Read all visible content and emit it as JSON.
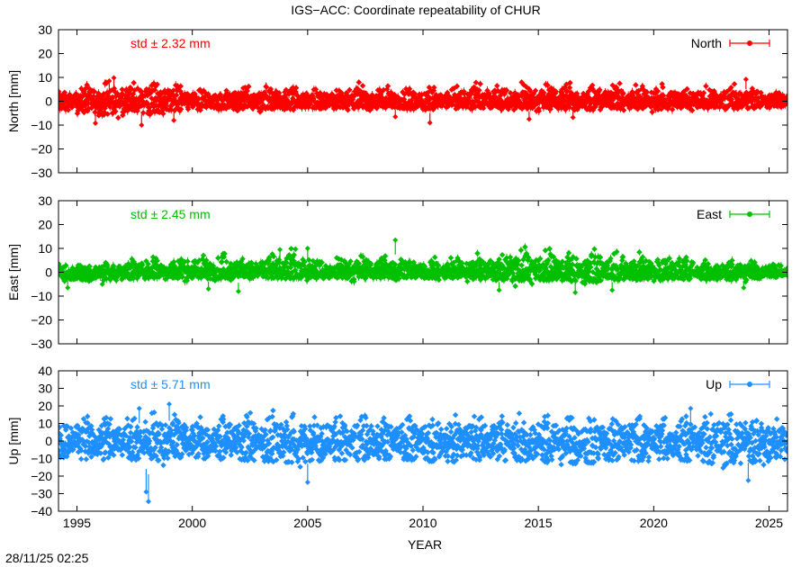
{
  "title": "IGS−ACC: Coordinate repeatability of CHUR",
  "timestamp": "28/11/25 02:25",
  "chart_data": {
    "type": "scatter",
    "xlabel": "YEAR",
    "xlim": [
      1994.2,
      2025.8
    ],
    "xticks": [
      1995,
      2000,
      2005,
      2010,
      2015,
      2020,
      2025
    ],
    "xtick_labels": [
      "1995",
      "2000",
      "2005",
      "2010",
      "2015",
      "2020",
      "2025"
    ],
    "grid": false,
    "legend_position": "top-right",
    "panels": [
      {
        "name": "north",
        "ylabel": "North [mm]",
        "ylim": [
          -30,
          30
        ],
        "yticks": [
          30,
          20,
          10,
          0,
          -10,
          -20,
          -30
        ],
        "ytick_labels": [
          "30",
          "20",
          "10",
          "0",
          "−10",
          "−20",
          "−30"
        ],
        "std_label": "std ± 2.32 mm",
        "std_mm": 2.32,
        "legend": "North",
        "color": "#ff0000",
        "envelope": [
          [
            1994.2,
            -5.5,
            4.5
          ],
          [
            1995.0,
            -6.5,
            6.0
          ],
          [
            1996.0,
            -9.5,
            8.0
          ],
          [
            1997.0,
            -7.0,
            9.5
          ],
          [
            1998.0,
            -10.0,
            8.0
          ],
          [
            1999.0,
            -7.0,
            7.0
          ],
          [
            2000.0,
            -6.0,
            6.0
          ],
          [
            2001.0,
            -5.5,
            5.5
          ],
          [
            2002.0,
            -5.0,
            6.5
          ],
          [
            2003.0,
            -5.0,
            7.0
          ],
          [
            2004.0,
            -6.0,
            8.5
          ],
          [
            2005.0,
            -5.0,
            6.0
          ],
          [
            2006.0,
            -5.0,
            6.0
          ],
          [
            2007.0,
            -5.0,
            10.0
          ],
          [
            2008.0,
            -5.0,
            7.5
          ],
          [
            2009.0,
            -4.5,
            6.5
          ],
          [
            2010.0,
            -6.0,
            6.0
          ],
          [
            2011.0,
            -5.0,
            6.0
          ],
          [
            2012.0,
            -5.0,
            8.5
          ],
          [
            2013.0,
            -5.5,
            7.0
          ],
          [
            2014.0,
            -5.0,
            8.0
          ],
          [
            2015.0,
            -5.0,
            8.5
          ],
          [
            2016.0,
            -5.5,
            10.0
          ],
          [
            2017.0,
            -6.0,
            7.0
          ],
          [
            2018.0,
            -5.0,
            8.0
          ],
          [
            2019.0,
            -5.0,
            7.0
          ],
          [
            2020.0,
            -5.5,
            8.0
          ],
          [
            2021.0,
            -5.0,
            7.5
          ],
          [
            2022.0,
            -5.0,
            6.5
          ],
          [
            2023.0,
            -5.0,
            7.5
          ],
          [
            2024.0,
            -5.0,
            7.0
          ],
          [
            2025.0,
            -4.0,
            5.0
          ],
          [
            2025.8,
            -3.0,
            3.5
          ]
        ],
        "outliers": [
          [
            1995.8,
            -9.2
          ],
          [
            1996.4,
            8.5
          ],
          [
            1996.6,
            9.8
          ],
          [
            1997.8,
            -10.0
          ],
          [
            1999.2,
            -8.0
          ],
          [
            2002.2,
            5.5
          ],
          [
            2008.8,
            -6.5
          ],
          [
            2010.3,
            -9.0
          ],
          [
            2014.6,
            -7.5
          ],
          [
            2016.5,
            -6.8
          ],
          [
            2024.0,
            9.2
          ]
        ]
      },
      {
        "name": "east",
        "ylabel": "East [mm]",
        "ylim": [
          -30,
          30
        ],
        "yticks": [
          30,
          20,
          10,
          0,
          -10,
          -20,
          -30
        ],
        "ytick_labels": [
          "30",
          "20",
          "10",
          "0",
          "−10",
          "−20",
          "−30"
        ],
        "std_label": "std ± 2.45 mm",
        "std_mm": 2.45,
        "legend": "East",
        "color": "#00c000",
        "envelope": [
          [
            1994.2,
            -5.5,
            4.0
          ],
          [
            1995.0,
            -6.0,
            4.5
          ],
          [
            1996.0,
            -5.5,
            4.5
          ],
          [
            1997.0,
            -4.5,
            4.0
          ],
          [
            1998.0,
            -4.0,
            10.0
          ],
          [
            1999.0,
            -4.0,
            7.5
          ],
          [
            2000.0,
            -4.0,
            7.0
          ],
          [
            2001.0,
            -4.5,
            10.0
          ],
          [
            2002.0,
            -4.0,
            8.0
          ],
          [
            2003.0,
            -4.0,
            8.0
          ],
          [
            2004.0,
            -4.5,
            11.5
          ],
          [
            2005.0,
            -4.0,
            10.0
          ],
          [
            2006.0,
            -3.5,
            5.0
          ],
          [
            2007.0,
            -4.0,
            10.0
          ],
          [
            2008.0,
            -4.0,
            8.0
          ],
          [
            2009.0,
            -4.0,
            9.0
          ],
          [
            2010.0,
            -4.0,
            6.0
          ],
          [
            2011.0,
            -4.0,
            6.5
          ],
          [
            2012.0,
            -4.0,
            8.5
          ],
          [
            2013.0,
            -6.0,
            8.5
          ],
          [
            2014.0,
            -6.0,
            13.0
          ],
          [
            2015.0,
            -5.0,
            11.5
          ],
          [
            2016.0,
            -6.0,
            9.5
          ],
          [
            2017.0,
            -7.0,
            9.0
          ],
          [
            2018.0,
            -5.0,
            11.0
          ],
          [
            2019.0,
            -5.0,
            10.0
          ],
          [
            2020.0,
            -5.5,
            8.5
          ],
          [
            2021.0,
            -5.0,
            9.5
          ],
          [
            2022.0,
            -5.0,
            6.0
          ],
          [
            2023.0,
            -5.0,
            5.0
          ],
          [
            2024.0,
            -5.0,
            5.0
          ],
          [
            2025.0,
            -3.5,
            4.5
          ],
          [
            2025.8,
            -3.0,
            3.5
          ]
        ],
        "outliers": [
          [
            1994.6,
            -6.5
          ],
          [
            1996.1,
            -5.0
          ],
          [
            2000.7,
            -7.0
          ],
          [
            2002.0,
            -8.0
          ],
          [
            2003.8,
            9.5
          ],
          [
            2005.0,
            10.0
          ],
          [
            2008.8,
            13.5
          ],
          [
            2013.3,
            -7.5
          ],
          [
            2016.6,
            -8.5
          ],
          [
            2018.2,
            -7.5
          ],
          [
            2023.9,
            -6.5
          ]
        ]
      },
      {
        "name": "up",
        "ylabel": "Up [mm]",
        "ylim": [
          -40,
          40
        ],
        "yticks": [
          40,
          30,
          20,
          10,
          0,
          -10,
          -20,
          -30,
          -40
        ],
        "ytick_labels": [
          "40",
          "30",
          "20",
          "10",
          "0",
          "−10",
          "−20",
          "−30",
          "−40"
        ],
        "std_label": "std ± 5.71 mm",
        "std_mm": 5.71,
        "legend": "Up",
        "color": "#1e8fff",
        "envelope": [
          [
            1994.2,
            -14.0,
            13.0
          ],
          [
            1995.0,
            -17.0,
            14.0
          ],
          [
            1996.0,
            -18.0,
            14.0
          ],
          [
            1997.0,
            -15.0,
            12.0
          ],
          [
            1998.0,
            -19.0,
            17.0
          ],
          [
            1999.0,
            -17.0,
            16.0
          ],
          [
            2000.0,
            -16.0,
            15.0
          ],
          [
            2001.0,
            -16.0,
            14.0
          ],
          [
            2002.0,
            -17.0,
            15.0
          ],
          [
            2003.0,
            -18.0,
            17.0
          ],
          [
            2004.0,
            -20.0,
            18.0
          ],
          [
            2005.0,
            -19.0,
            14.0
          ],
          [
            2006.0,
            -17.0,
            14.0
          ],
          [
            2007.0,
            -18.0,
            15.0
          ],
          [
            2008.0,
            -16.0,
            14.0
          ],
          [
            2009.0,
            -16.0,
            14.0
          ],
          [
            2010.0,
            -18.0,
            16.0
          ],
          [
            2011.0,
            -20.0,
            16.0
          ],
          [
            2012.0,
            -17.0,
            15.0
          ],
          [
            2013.0,
            -17.0,
            14.0
          ],
          [
            2014.0,
            -18.0,
            16.0
          ],
          [
            2015.0,
            -18.0,
            15.0
          ],
          [
            2016.0,
            -20.0,
            14.0
          ],
          [
            2017.0,
            -20.0,
            13.0
          ],
          [
            2018.0,
            -18.0,
            14.0
          ],
          [
            2019.0,
            -18.0,
            14.0
          ],
          [
            2020.0,
            -17.0,
            14.0
          ],
          [
            2021.0,
            -18.0,
            14.0
          ],
          [
            2022.0,
            -18.0,
            15.0
          ],
          [
            2023.0,
            -22.0,
            16.0
          ],
          [
            2024.0,
            -20.0,
            16.0
          ],
          [
            2025.0,
            -18.0,
            15.0
          ],
          [
            2025.8,
            -12.0,
            11.0
          ]
        ],
        "outliers": [
          [
            1997.7,
            18.5
          ],
          [
            1998.0,
            -29.0
          ],
          [
            1998.1,
            -34.5
          ],
          [
            1999.0,
            21.0
          ],
          [
            2005.0,
            -23.5
          ],
          [
            2021.6,
            18.5
          ],
          [
            2024.1,
            -22.5
          ],
          [
            2025.5,
            -9.0
          ]
        ]
      }
    ]
  }
}
